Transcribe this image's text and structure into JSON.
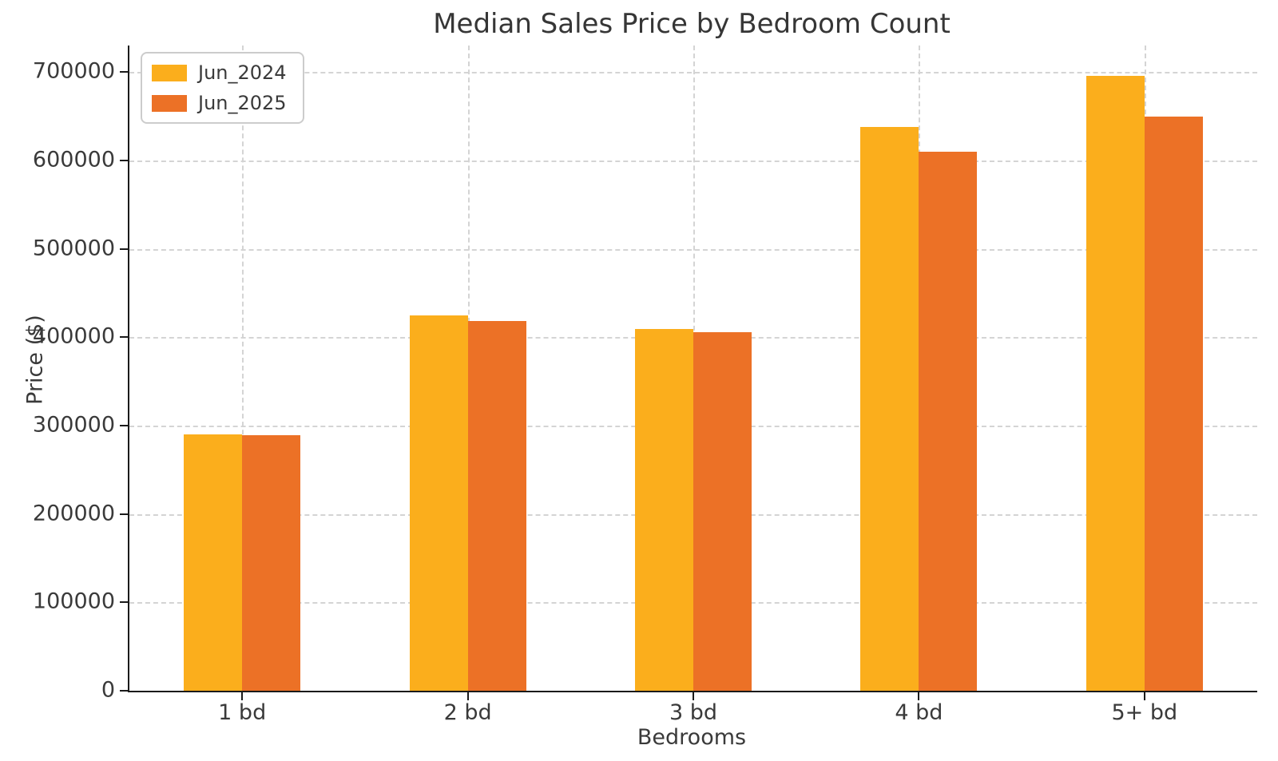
{
  "title": "Median Sales Price by Bedroom Count",
  "axes": {
    "ylabel": "Price ($)",
    "xlabel": "Bedrooms"
  },
  "legend": {
    "position": "upper left",
    "items": [
      {
        "label": "Jun_2024",
        "color": "#FBAE1C"
      },
      {
        "label": "Jun_2025",
        "color": "#EC7126"
      }
    ]
  },
  "colors": {
    "series_jun_2024": "#FBAE1C",
    "series_jun_2025": "#EC7126",
    "axis": "#1a1a1a",
    "grid": "#d4d4d4",
    "text": "#3a3a3a",
    "background": "#ffffff"
  },
  "chart_data": {
    "type": "bar",
    "title": "Median Sales Price by Bedroom Count",
    "xlabel": "Bedrooms",
    "ylabel": "Price ($)",
    "categories": [
      "1 bd",
      "2 bd",
      "3 bd",
      "4 bd",
      "5+ bd"
    ],
    "series": [
      {
        "name": "Jun_2024",
        "color": "#FBAE1C",
        "values": [
          290000,
          425000,
          409000,
          638000,
          696000
        ]
      },
      {
        "name": "Jun_2025",
        "color": "#EC7126",
        "values": [
          289000,
          418000,
          406000,
          610000,
          650000
        ]
      }
    ],
    "ylim": [
      0,
      730000
    ],
    "yticks": [
      0,
      100000,
      200000,
      300000,
      400000,
      500000,
      600000,
      700000
    ],
    "ytick_labels": [
      "0",
      "100000",
      "200000",
      "300000",
      "400000",
      "500000",
      "600000",
      "700000"
    ],
    "grid": true,
    "grid_style": "dashed",
    "legend_position": "upper left",
    "bar_width_pct": 5.17
  }
}
